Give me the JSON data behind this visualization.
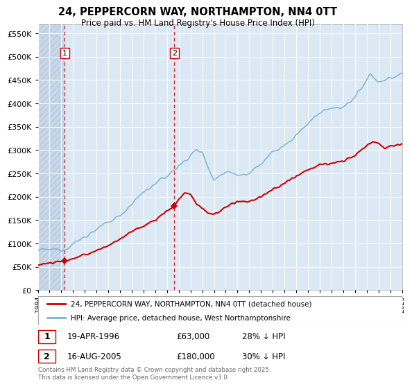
{
  "title": "24, PEPPERCORN WAY, NORTHAMPTON, NN4 0TT",
  "subtitle": "Price paid vs. HM Land Registry's House Price Index (HPI)",
  "ylim": [
    0,
    570000
  ],
  "yticks": [
    0,
    50000,
    100000,
    150000,
    200000,
    250000,
    300000,
    350000,
    400000,
    450000,
    500000,
    550000
  ],
  "x_start_year": 1994,
  "x_end_year": 2025,
  "hpi_color": "#7ab3d4",
  "price_color": "#cc0000",
  "sale1_year": 1996.3,
  "sale1_price": 63000,
  "sale1_label": "1",
  "sale2_year": 2005.62,
  "sale2_price": 180000,
  "sale2_label": "2",
  "legend_line1": "24, PEPPERCORN WAY, NORTHAMPTON, NN4 0TT (detached house)",
  "legend_line2": "HPI: Average price, detached house, West Northamptonshire",
  "table_row1": [
    "1",
    "19-APR-1996",
    "£63,000",
    "28% ↓ HPI"
  ],
  "table_row2": [
    "2",
    "16-AUG-2005",
    "£180,000",
    "30% ↓ HPI"
  ],
  "footnote": "Contains HM Land Registry data © Crown copyright and database right 2025.\nThis data is licensed under the Open Government Licence v3.0.",
  "background_color": "#ffffff",
  "plot_bg_color": "#dce9f5",
  "hatch_bg_color": "#c8d8e8",
  "grid_color": "#ffffff"
}
